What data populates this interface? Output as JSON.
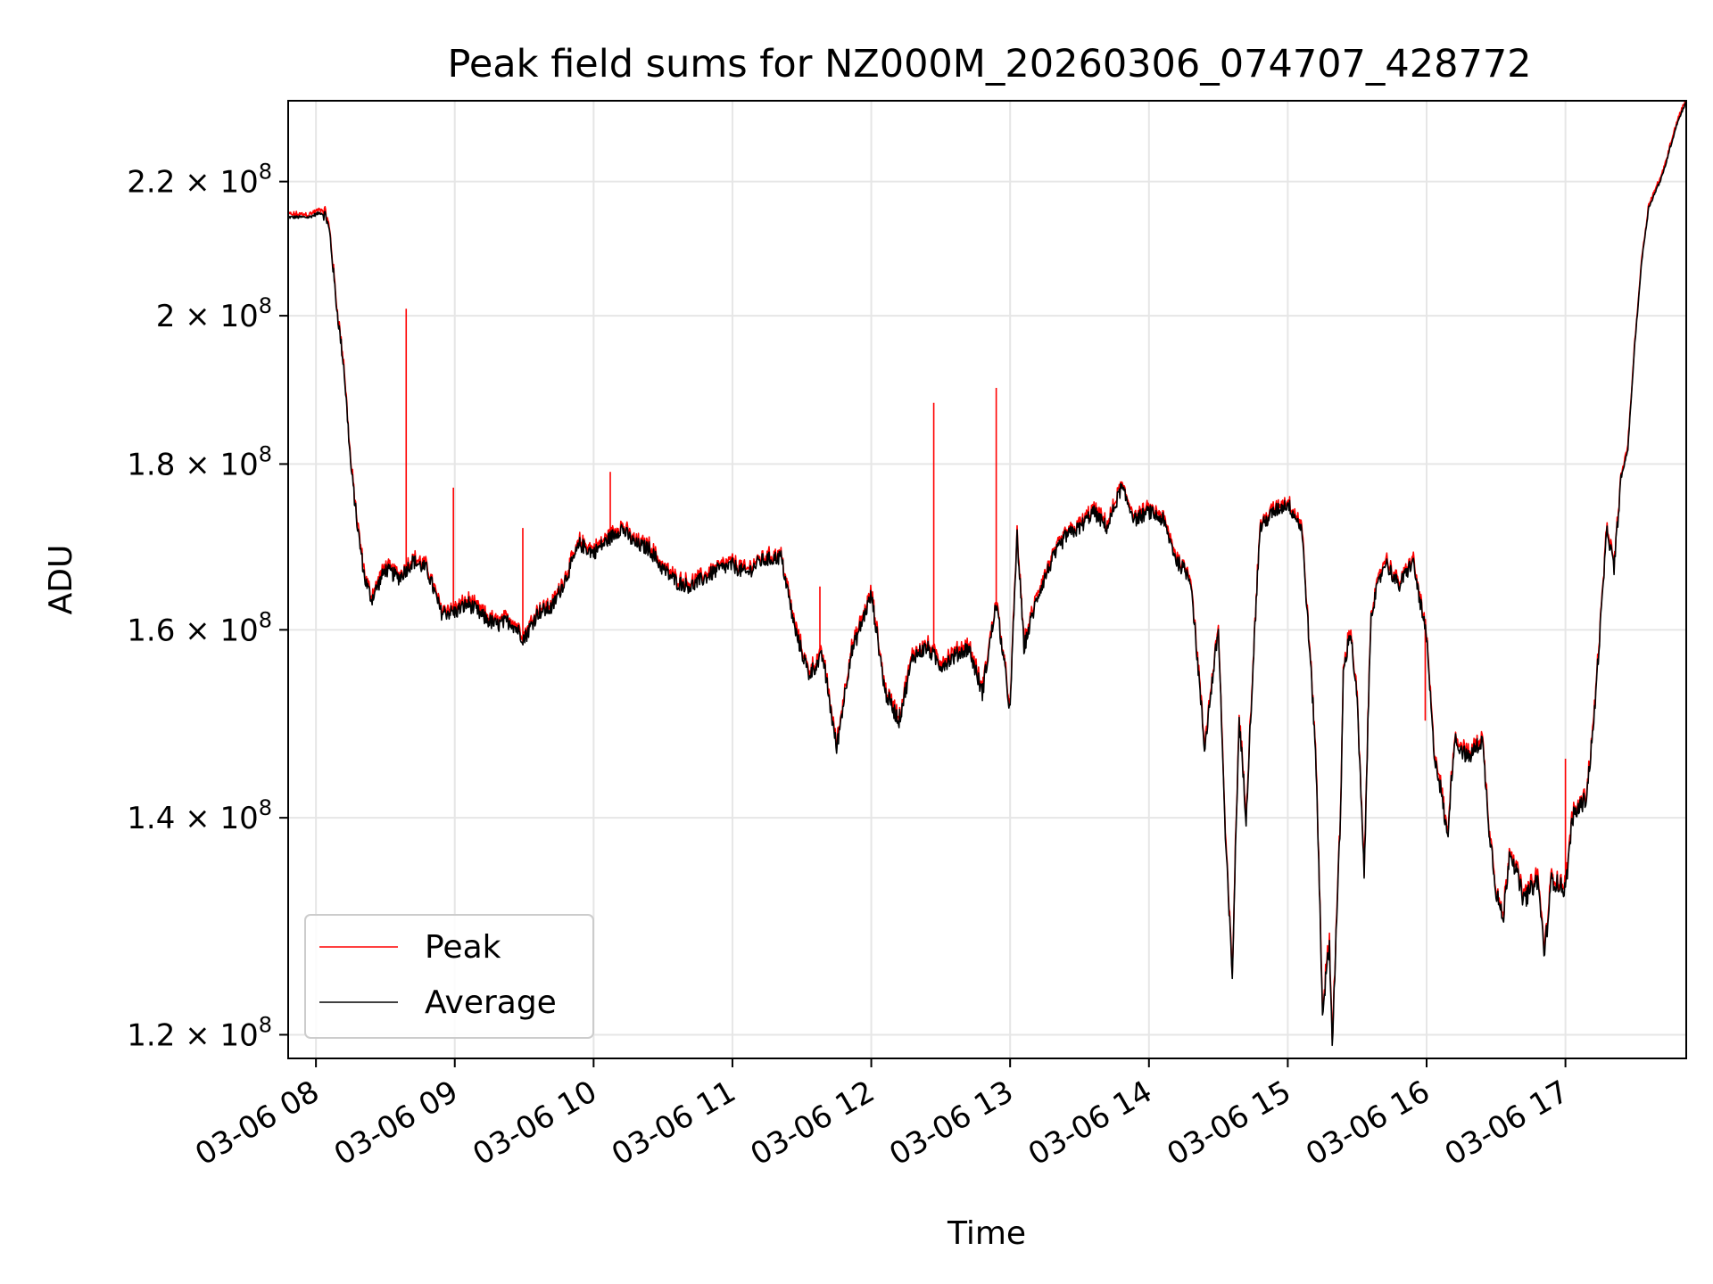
{
  "chart_data": {
    "type": "line",
    "title": "Peak field sums for NZ000M_20260306_074707_428772",
    "xlabel": "Time",
    "ylabel": "ADU",
    "yscale": "log",
    "ylim": [
      118000000,
      233000000
    ],
    "xlim_hours": [
      7.8,
      17.87
    ],
    "grid": true,
    "legend_position": "lower-left",
    "x_ticks": [
      {
        "label": "03-06 08",
        "hour": 8
      },
      {
        "label": "03-06 09",
        "hour": 9
      },
      {
        "label": "03-06 10",
        "hour": 10
      },
      {
        "label": "03-06 11",
        "hour": 11
      },
      {
        "label": "03-06 12",
        "hour": 12
      },
      {
        "label": "03-06 13",
        "hour": 13
      },
      {
        "label": "03-06 14",
        "hour": 14
      },
      {
        "label": "03-06 15",
        "hour": 15
      },
      {
        "label": "03-06 16",
        "hour": 16
      },
      {
        "label": "03-06 17",
        "hour": 17
      }
    ],
    "y_ticks": [
      {
        "mantissa": "1.2",
        "value": 120000000
      },
      {
        "mantissa": "1.4",
        "value": 140000000
      },
      {
        "mantissa": "1.6",
        "value": 160000000
      },
      {
        "mantissa": "1.8",
        "value": 180000000
      },
      {
        "mantissa": "2",
        "value": 200000000
      },
      {
        "mantissa": "2.2",
        "value": 220000000
      }
    ],
    "y_tick_suffix": "× 10",
    "y_tick_exponent": "8",
    "series": [
      {
        "name": "Peak",
        "color": "#ff0000"
      },
      {
        "name": "Average",
        "color": "#000000"
      }
    ],
    "average_keypoints": [
      [
        7.8,
        214.5
      ],
      [
        7.95,
        214.5
      ],
      [
        8.03,
        215.2
      ],
      [
        8.07,
        214.8
      ],
      [
        8.1,
        212.0
      ],
      [
        8.15,
        201.0
      ],
      [
        8.2,
        193.0
      ],
      [
        8.25,
        180.0
      ],
      [
        8.3,
        172.0
      ],
      [
        8.35,
        166.0
      ],
      [
        8.4,
        163.5
      ],
      [
        8.5,
        167.0
      ],
      [
        8.6,
        166.0
      ],
      [
        8.7,
        168.0
      ],
      [
        8.8,
        167.0
      ],
      [
        8.9,
        162.0
      ],
      [
        9.0,
        162.0
      ],
      [
        9.1,
        163.0
      ],
      [
        9.2,
        161.5
      ],
      [
        9.3,
        160.5
      ],
      [
        9.4,
        161.0
      ],
      [
        9.5,
        159.0
      ],
      [
        9.6,
        162.0
      ],
      [
        9.7,
        162.5
      ],
      [
        9.8,
        166.0
      ],
      [
        9.9,
        170.0
      ],
      [
        10.0,
        169.0
      ],
      [
        10.1,
        170.5
      ],
      [
        10.2,
        172.0
      ],
      [
        10.3,
        170.0
      ],
      [
        10.4,
        169.5
      ],
      [
        10.5,
        167.0
      ],
      [
        10.6,
        165.5
      ],
      [
        10.7,
        165.0
      ],
      [
        10.8,
        166.0
      ],
      [
        10.9,
        167.0
      ],
      [
        11.0,
        167.5
      ],
      [
        11.1,
        166.5
      ],
      [
        11.2,
        168.0
      ],
      [
        11.35,
        168.5
      ],
      [
        11.45,
        160.0
      ],
      [
        11.55,
        155.0
      ],
      [
        11.65,
        157.0
      ],
      [
        11.75,
        147.0
      ],
      [
        11.85,
        157.0
      ],
      [
        12.0,
        164.0
      ],
      [
        12.1,
        153.0
      ],
      [
        12.2,
        150.0
      ],
      [
        12.3,
        157.0
      ],
      [
        12.4,
        158.0
      ],
      [
        12.5,
        156.0
      ],
      [
        12.6,
        157.0
      ],
      [
        12.7,
        158.0
      ],
      [
        12.8,
        153.0
      ],
      [
        12.9,
        163.0
      ],
      [
        13.0,
        151.0
      ],
      [
        13.05,
        171.0
      ],
      [
        13.1,
        158.0
      ],
      [
        13.2,
        164.0
      ],
      [
        13.3,
        168.0
      ],
      [
        13.4,
        171.0
      ],
      [
        13.5,
        172.0
      ],
      [
        13.6,
        174.0
      ],
      [
        13.7,
        172.0
      ],
      [
        13.8,
        177.0
      ],
      [
        13.9,
        173.0
      ],
      [
        14.0,
        174.0
      ],
      [
        14.1,
        173.0
      ],
      [
        14.2,
        168.0
      ],
      [
        14.3,
        166.0
      ],
      [
        14.4,
        147.0
      ],
      [
        14.5,
        160.0
      ],
      [
        14.55,
        138.0
      ],
      [
        14.6,
        125.0
      ],
      [
        14.65,
        150.0
      ],
      [
        14.7,
        140.0
      ],
      [
        14.8,
        172.0
      ],
      [
        14.9,
        174.0
      ],
      [
        15.0,
        175.0
      ],
      [
        15.1,
        172.0
      ],
      [
        15.2,
        147.0
      ],
      [
        15.25,
        122.0
      ],
      [
        15.3,
        128.0
      ],
      [
        15.32,
        119.0
      ],
      [
        15.38,
        140.0
      ],
      [
        15.4,
        155.0
      ],
      [
        15.45,
        160.0
      ],
      [
        15.5,
        152.0
      ],
      [
        15.55,
        134.0
      ],
      [
        15.6,
        162.0
      ],
      [
        15.7,
        168.0
      ],
      [
        15.8,
        165.0
      ],
      [
        15.9,
        168.0
      ],
      [
        16.0,
        159.0
      ],
      [
        16.05,
        147.0
      ],
      [
        16.1,
        143.0
      ],
      [
        16.15,
        138.0
      ],
      [
        16.2,
        148.0
      ],
      [
        16.3,
        146.0
      ],
      [
        16.4,
        148.0
      ],
      [
        16.45,
        139.0
      ],
      [
        16.5,
        133.0
      ],
      [
        16.55,
        130.0
      ],
      [
        16.6,
        137.0
      ],
      [
        16.7,
        132.0
      ],
      [
        16.8,
        134.0
      ],
      [
        16.85,
        127.0
      ],
      [
        16.9,
        134.0
      ],
      [
        17.0,
        133.0
      ],
      [
        17.05,
        140.0
      ],
      [
        17.15,
        142.0
      ],
      [
        17.2,
        149.0
      ],
      [
        17.25,
        160.0
      ],
      [
        17.3,
        172.0
      ],
      [
        17.35,
        167.0
      ],
      [
        17.4,
        178.0
      ],
      [
        17.45,
        182.0
      ],
      [
        17.5,
        196.0
      ],
      [
        17.55,
        208.0
      ],
      [
        17.6,
        216.0
      ],
      [
        17.7,
        221.0
      ],
      [
        17.8,
        229.0
      ],
      [
        17.87,
        233.0
      ]
    ],
    "peak_spikes": [
      [
        8.65,
        201.0
      ],
      [
        8.99,
        177.0
      ],
      [
        9.49,
        172.0
      ],
      [
        10.12,
        179.0
      ],
      [
        11.63,
        165.0
      ],
      [
        12.45,
        188.0
      ],
      [
        12.9,
        190.0
      ],
      [
        15.99,
        150.0
      ],
      [
        17.0,
        146.0
      ]
    ]
  }
}
